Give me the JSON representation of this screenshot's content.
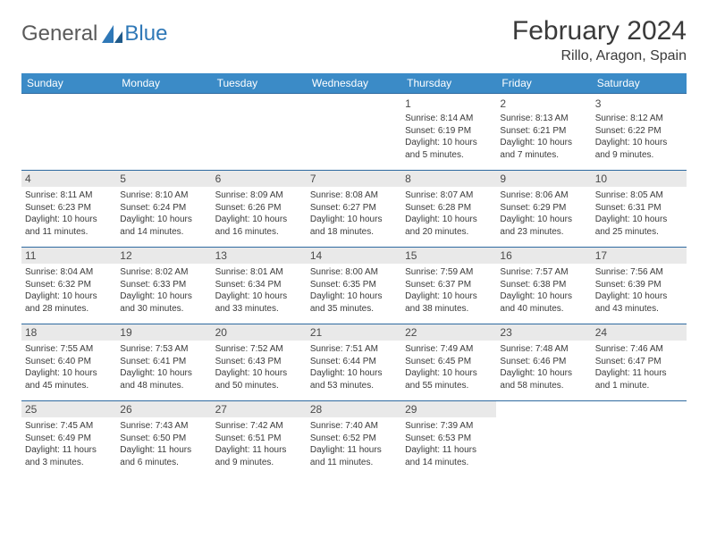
{
  "logo": {
    "text1": "General",
    "text2": "Blue"
  },
  "title": "February 2024",
  "location": "Rillo, Aragon, Spain",
  "colors": {
    "header_bg": "#3b8bc7",
    "header_text": "#ffffff",
    "row_border": "#2f6aa0",
    "daynum_bg": "#e9e9e9",
    "text": "#3a3a3a"
  },
  "weekdays": [
    "Sunday",
    "Monday",
    "Tuesday",
    "Wednesday",
    "Thursday",
    "Friday",
    "Saturday"
  ],
  "layout": {
    "rows": 5,
    "cols": 7,
    "first_day_col": 4,
    "days_in_month": 29
  },
  "days": {
    "1": {
      "sunrise": "8:14 AM",
      "sunset": "6:19 PM",
      "daylight": "10 hours and 5 minutes."
    },
    "2": {
      "sunrise": "8:13 AM",
      "sunset": "6:21 PM",
      "daylight": "10 hours and 7 minutes."
    },
    "3": {
      "sunrise": "8:12 AM",
      "sunset": "6:22 PM",
      "daylight": "10 hours and 9 minutes."
    },
    "4": {
      "sunrise": "8:11 AM",
      "sunset": "6:23 PM",
      "daylight": "10 hours and 11 minutes."
    },
    "5": {
      "sunrise": "8:10 AM",
      "sunset": "6:24 PM",
      "daylight": "10 hours and 14 minutes."
    },
    "6": {
      "sunrise": "8:09 AM",
      "sunset": "6:26 PM",
      "daylight": "10 hours and 16 minutes."
    },
    "7": {
      "sunrise": "8:08 AM",
      "sunset": "6:27 PM",
      "daylight": "10 hours and 18 minutes."
    },
    "8": {
      "sunrise": "8:07 AM",
      "sunset": "6:28 PM",
      "daylight": "10 hours and 20 minutes."
    },
    "9": {
      "sunrise": "8:06 AM",
      "sunset": "6:29 PM",
      "daylight": "10 hours and 23 minutes."
    },
    "10": {
      "sunrise": "8:05 AM",
      "sunset": "6:31 PM",
      "daylight": "10 hours and 25 minutes."
    },
    "11": {
      "sunrise": "8:04 AM",
      "sunset": "6:32 PM",
      "daylight": "10 hours and 28 minutes."
    },
    "12": {
      "sunrise": "8:02 AM",
      "sunset": "6:33 PM",
      "daylight": "10 hours and 30 minutes."
    },
    "13": {
      "sunrise": "8:01 AM",
      "sunset": "6:34 PM",
      "daylight": "10 hours and 33 minutes."
    },
    "14": {
      "sunrise": "8:00 AM",
      "sunset": "6:35 PM",
      "daylight": "10 hours and 35 minutes."
    },
    "15": {
      "sunrise": "7:59 AM",
      "sunset": "6:37 PM",
      "daylight": "10 hours and 38 minutes."
    },
    "16": {
      "sunrise": "7:57 AM",
      "sunset": "6:38 PM",
      "daylight": "10 hours and 40 minutes."
    },
    "17": {
      "sunrise": "7:56 AM",
      "sunset": "6:39 PM",
      "daylight": "10 hours and 43 minutes."
    },
    "18": {
      "sunrise": "7:55 AM",
      "sunset": "6:40 PM",
      "daylight": "10 hours and 45 minutes."
    },
    "19": {
      "sunrise": "7:53 AM",
      "sunset": "6:41 PM",
      "daylight": "10 hours and 48 minutes."
    },
    "20": {
      "sunrise": "7:52 AM",
      "sunset": "6:43 PM",
      "daylight": "10 hours and 50 minutes."
    },
    "21": {
      "sunrise": "7:51 AM",
      "sunset": "6:44 PM",
      "daylight": "10 hours and 53 minutes."
    },
    "22": {
      "sunrise": "7:49 AM",
      "sunset": "6:45 PM",
      "daylight": "10 hours and 55 minutes."
    },
    "23": {
      "sunrise": "7:48 AM",
      "sunset": "6:46 PM",
      "daylight": "10 hours and 58 minutes."
    },
    "24": {
      "sunrise": "7:46 AM",
      "sunset": "6:47 PM",
      "daylight": "11 hours and 1 minute."
    },
    "25": {
      "sunrise": "7:45 AM",
      "sunset": "6:49 PM",
      "daylight": "11 hours and 3 minutes."
    },
    "26": {
      "sunrise": "7:43 AM",
      "sunset": "6:50 PM",
      "daylight": "11 hours and 6 minutes."
    },
    "27": {
      "sunrise": "7:42 AM",
      "sunset": "6:51 PM",
      "daylight": "11 hours and 9 minutes."
    },
    "28": {
      "sunrise": "7:40 AM",
      "sunset": "6:52 PM",
      "daylight": "11 hours and 11 minutes."
    },
    "29": {
      "sunrise": "7:39 AM",
      "sunset": "6:53 PM",
      "daylight": "11 hours and 14 minutes."
    }
  },
  "labels": {
    "sunrise": "Sunrise:",
    "sunset": "Sunset:",
    "daylight": "Daylight:"
  }
}
